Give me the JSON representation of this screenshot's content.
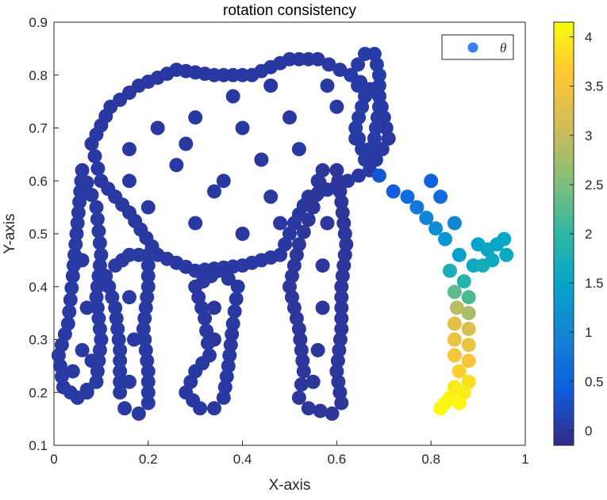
{
  "chart_data": {
    "type": "scatter",
    "title": "rotation consistency",
    "xlabel": "X-axis",
    "ylabel": "Y-axis",
    "xlim": [
      0,
      1
    ],
    "ylim": [
      0.1,
      0.9
    ],
    "xticks": [
      "0",
      "0.2",
      "0.4",
      "0.6",
      "0.8",
      "1"
    ],
    "yticks": [
      "0.1",
      "0.2",
      "0.3",
      "0.4",
      "0.5",
      "0.6",
      "0.7",
      "0.8",
      "0.9"
    ],
    "grid": false,
    "legend": {
      "placement": "top-right",
      "entries": [
        "θ"
      ]
    },
    "colorbar": {
      "range": [
        -0.15,
        4.15
      ],
      "ticks": [
        "0",
        "0.5",
        "1",
        "1.5",
        "2",
        "2.5",
        "3",
        "3.5",
        "4"
      ],
      "colormap": "parula"
    },
    "shapes": [
      {
        "part": "body-outline",
        "closed": true,
        "value": 0.02,
        "points": [
          [
            0.08,
            0.67
          ],
          [
            0.12,
            0.74
          ],
          [
            0.18,
            0.78
          ],
          [
            0.26,
            0.81
          ],
          [
            0.34,
            0.8
          ],
          [
            0.42,
            0.8
          ],
          [
            0.5,
            0.83
          ],
          [
            0.56,
            0.83
          ],
          [
            0.63,
            0.8
          ],
          [
            0.69,
            0.76
          ],
          [
            0.71,
            0.68
          ],
          [
            0.67,
            0.62
          ],
          [
            0.6,
            0.59
          ],
          [
            0.54,
            0.57
          ],
          [
            0.51,
            0.52
          ],
          [
            0.48,
            0.46
          ],
          [
            0.4,
            0.44
          ],
          [
            0.3,
            0.43
          ],
          [
            0.22,
            0.46
          ],
          [
            0.16,
            0.54
          ],
          [
            0.1,
            0.6
          ]
        ]
      },
      {
        "part": "body-fill",
        "closed": false,
        "value": 0.02,
        "points": [
          [
            0.16,
            0.6
          ],
          [
            0.26,
            0.63
          ],
          [
            0.36,
            0.6
          ],
          [
            0.46,
            0.57
          ],
          [
            0.56,
            0.6
          ],
          [
            0.64,
            0.68
          ],
          [
            0.6,
            0.74
          ],
          [
            0.5,
            0.72
          ],
          [
            0.4,
            0.7
          ],
          [
            0.3,
            0.72
          ],
          [
            0.22,
            0.7
          ],
          [
            0.16,
            0.66
          ],
          [
            0.2,
            0.55
          ],
          [
            0.3,
            0.52
          ],
          [
            0.4,
            0.5
          ],
          [
            0.48,
            0.52
          ],
          [
            0.38,
            0.76
          ],
          [
            0.28,
            0.67
          ],
          [
            0.34,
            0.58
          ],
          [
            0.44,
            0.64
          ],
          [
            0.52,
            0.66
          ],
          [
            0.58,
            0.78
          ],
          [
            0.46,
            0.78
          ]
        ]
      },
      {
        "part": "ear",
        "closed": true,
        "value": 0.05,
        "points": [
          [
            0.63,
            0.8
          ],
          [
            0.66,
            0.84
          ],
          [
            0.68,
            0.84
          ],
          [
            0.69,
            0.8
          ],
          [
            0.69,
            0.74
          ],
          [
            0.68,
            0.68
          ],
          [
            0.66,
            0.64
          ],
          [
            0.64,
            0.7
          ],
          [
            0.66,
            0.76
          ]
        ]
      },
      {
        "part": "back-leg-left",
        "closed": true,
        "value": 0.03,
        "points": [
          [
            0.06,
            0.62
          ],
          [
            0.09,
            0.55
          ],
          [
            0.1,
            0.46
          ],
          [
            0.09,
            0.38
          ],
          [
            0.1,
            0.3
          ],
          [
            0.09,
            0.22
          ],
          [
            0.05,
            0.19
          ],
          [
            0.02,
            0.21
          ],
          [
            0.01,
            0.27
          ],
          [
            0.03,
            0.33
          ],
          [
            0.04,
            0.42
          ],
          [
            0.05,
            0.52
          ]
        ]
      },
      {
        "part": "back-leg-right",
        "closed": true,
        "value": 0.03,
        "points": [
          [
            0.11,
            0.42
          ],
          [
            0.13,
            0.36
          ],
          [
            0.14,
            0.28
          ],
          [
            0.14,
            0.2
          ],
          [
            0.15,
            0.17
          ],
          [
            0.18,
            0.16
          ],
          [
            0.2,
            0.18
          ],
          [
            0.2,
            0.24
          ],
          [
            0.19,
            0.32
          ],
          [
            0.2,
            0.4
          ],
          [
            0.2,
            0.46
          ],
          [
            0.16,
            0.46
          ],
          [
            0.13,
            0.44
          ]
        ]
      },
      {
        "part": "back-leg-fill",
        "closed": false,
        "value": 0.03,
        "points": [
          [
            0.04,
            0.24
          ],
          [
            0.06,
            0.28
          ],
          [
            0.07,
            0.36
          ],
          [
            0.06,
            0.45
          ],
          [
            0.07,
            0.2
          ],
          [
            0.16,
            0.22
          ],
          [
            0.17,
            0.3
          ],
          [
            0.16,
            0.38
          ],
          [
            0.08,
            0.26
          ]
        ]
      },
      {
        "part": "front-leg-left",
        "closed": true,
        "value": 0.02,
        "points": [
          [
            0.3,
            0.4
          ],
          [
            0.32,
            0.34
          ],
          [
            0.33,
            0.27
          ],
          [
            0.3,
            0.24
          ],
          [
            0.28,
            0.2
          ],
          [
            0.31,
            0.17
          ],
          [
            0.34,
            0.17
          ],
          [
            0.36,
            0.19
          ],
          [
            0.37,
            0.25
          ],
          [
            0.38,
            0.33
          ],
          [
            0.39,
            0.4
          ],
          [
            0.35,
            0.43
          ]
        ]
      },
      {
        "part": "front-leg-right",
        "closed": true,
        "value": -0.02,
        "points": [
          [
            0.5,
            0.4
          ],
          [
            0.52,
            0.32
          ],
          [
            0.53,
            0.24
          ],
          [
            0.52,
            0.19
          ],
          [
            0.54,
            0.17
          ],
          [
            0.59,
            0.16
          ],
          [
            0.61,
            0.18
          ],
          [
            0.6,
            0.24
          ],
          [
            0.61,
            0.32
          ],
          [
            0.61,
            0.4
          ],
          [
            0.62,
            0.48
          ],
          [
            0.61,
            0.56
          ],
          [
            0.6,
            0.62
          ],
          [
            0.57,
            0.62
          ],
          [
            0.55,
            0.55
          ],
          [
            0.52,
            0.48
          ]
        ]
      },
      {
        "part": "front-leg-fill",
        "closed": false,
        "value": -0.02,
        "points": [
          [
            0.55,
            0.22
          ],
          [
            0.56,
            0.28
          ],
          [
            0.57,
            0.36
          ],
          [
            0.57,
            0.44
          ],
          [
            0.58,
            0.52
          ],
          [
            0.34,
            0.3
          ],
          [
            0.34,
            0.36
          ]
        ]
      }
    ],
    "trunk": [
      {
        "x": 0.69,
        "y": 0.61,
        "value": 0.35
      },
      {
        "x": 0.72,
        "y": 0.58,
        "value": 0.45
      },
      {
        "x": 0.75,
        "y": 0.57,
        "value": 0.6
      },
      {
        "x": 0.77,
        "y": 0.55,
        "value": 0.8
      },
      {
        "x": 0.79,
        "y": 0.53,
        "value": 0.95
      },
      {
        "x": 0.8,
        "y": 0.6,
        "value": 0.5
      },
      {
        "x": 0.82,
        "y": 0.57,
        "value": 0.65
      },
      {
        "x": 0.81,
        "y": 0.51,
        "value": 1.1
      },
      {
        "x": 0.83,
        "y": 0.49,
        "value": 1.25
      },
      {
        "x": 0.85,
        "y": 0.52,
        "value": 1.0
      },
      {
        "x": 0.86,
        "y": 0.46,
        "value": 1.45
      },
      {
        "x": 0.84,
        "y": 0.43,
        "value": 1.75
      },
      {
        "x": 0.87,
        "y": 0.41,
        "value": 1.9
      },
      {
        "x": 0.89,
        "y": 0.44,
        "value": 1.6
      },
      {
        "x": 0.9,
        "y": 0.48,
        "value": 1.5
      },
      {
        "x": 0.92,
        "y": 0.47,
        "value": 1.55
      },
      {
        "x": 0.94,
        "y": 0.48,
        "value": 1.55
      },
      {
        "x": 0.96,
        "y": 0.46,
        "value": 1.6
      },
      {
        "x": 0.955,
        "y": 0.49,
        "value": 1.55
      },
      {
        "x": 0.93,
        "y": 0.45,
        "value": 1.6
      },
      {
        "x": 0.91,
        "y": 0.44,
        "value": 1.7
      },
      {
        "x": 0.85,
        "y": 0.39,
        "value": 2.3
      },
      {
        "x": 0.88,
        "y": 0.38,
        "value": 2.2
      },
      {
        "x": 0.855,
        "y": 0.36,
        "value": 2.9
      },
      {
        "x": 0.88,
        "y": 0.35,
        "value": 2.8
      },
      {
        "x": 0.85,
        "y": 0.33,
        "value": 3.3
      },
      {
        "x": 0.88,
        "y": 0.32,
        "value": 3.2
      },
      {
        "x": 0.85,
        "y": 0.3,
        "value": 3.4
      },
      {
        "x": 0.88,
        "y": 0.29,
        "value": 3.4
      },
      {
        "x": 0.85,
        "y": 0.27,
        "value": 3.5
      },
      {
        "x": 0.88,
        "y": 0.26,
        "value": 3.55
      },
      {
        "x": 0.86,
        "y": 0.24,
        "value": 3.7
      },
      {
        "x": 0.88,
        "y": 0.22,
        "value": 3.85
      },
      {
        "x": 0.85,
        "y": 0.21,
        "value": 3.95
      },
      {
        "x": 0.87,
        "y": 0.2,
        "value": 4.0
      },
      {
        "x": 0.84,
        "y": 0.19,
        "value": 4.05
      },
      {
        "x": 0.83,
        "y": 0.18,
        "value": 4.1
      },
      {
        "x": 0.86,
        "y": 0.18,
        "value": 4.1
      },
      {
        "x": 0.82,
        "y": 0.17,
        "value": 4.12
      }
    ]
  }
}
